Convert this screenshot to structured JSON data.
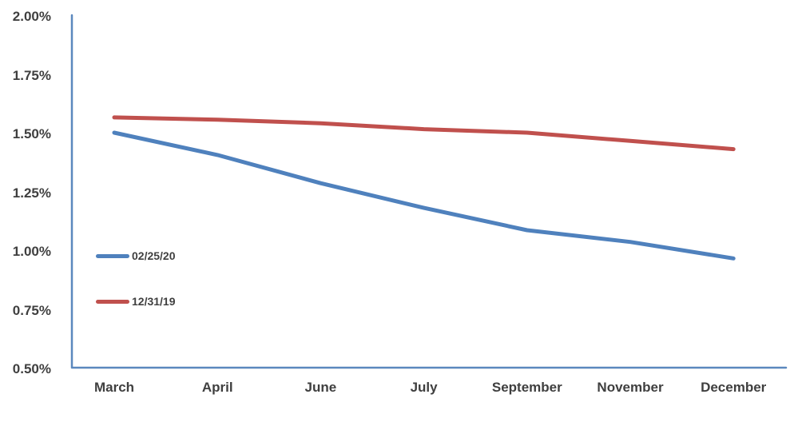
{
  "chart_data": {
    "type": "line",
    "title": "",
    "xlabel": "",
    "ylabel": "",
    "categories": [
      "March",
      "April",
      "June",
      "July",
      "September",
      "November",
      "December"
    ],
    "series": [
      {
        "name": "02/25/20",
        "color": "#4F81BD",
        "values": [
          1.5,
          1.405,
          1.285,
          1.18,
          1.085,
          1.035,
          0.965
        ]
      },
      {
        "name": "12/31/19",
        "color": "#C0504D",
        "values": [
          1.565,
          1.555,
          1.54,
          1.515,
          1.5,
          1.465,
          1.43
        ]
      }
    ],
    "y_axis": {
      "min": 0.5,
      "max": 2.0,
      "step": 0.25,
      "format": "percent",
      "tick_labels": [
        "2.00%",
        "1.75%",
        "1.50%",
        "1.25%",
        "1.00%",
        "0.75%",
        "0.50%"
      ]
    },
    "grid": false,
    "legend_position": "inside-left",
    "axis_color": "#5B88BE",
    "text_color": "#3F3F3F",
    "background_color": "#FFFFFF"
  }
}
